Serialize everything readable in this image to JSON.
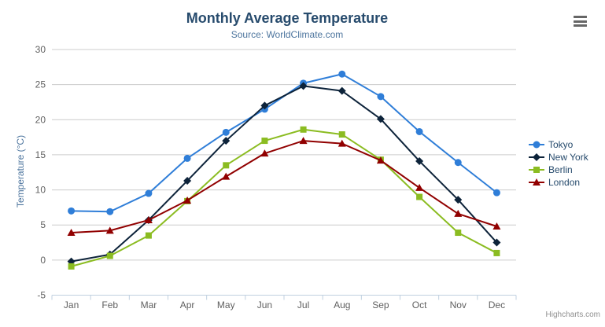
{
  "chart_data": {
    "type": "line",
    "title": "Monthly Average Temperature",
    "subtitle": "Source: WorldClimate.com",
    "xlabel": "",
    "ylabel": "Temperature (°C)",
    "categories": [
      "Jan",
      "Feb",
      "Mar",
      "Apr",
      "May",
      "Jun",
      "Jul",
      "Aug",
      "Sep",
      "Oct",
      "Nov",
      "Dec"
    ],
    "series": [
      {
        "name": "Tokyo",
        "color": "#2f7ed8",
        "marker": "circle",
        "values": [
          7.0,
          6.9,
          9.5,
          14.5,
          18.2,
          21.5,
          25.2,
          26.5,
          23.3,
          18.3,
          13.9,
          9.6
        ]
      },
      {
        "name": "New York",
        "color": "#0d233a",
        "marker": "diamond",
        "values": [
          -0.2,
          0.8,
          5.7,
          11.3,
          17.0,
          22.0,
          24.8,
          24.1,
          20.1,
          14.1,
          8.6,
          2.5
        ]
      },
      {
        "name": "Berlin",
        "color": "#8bbc21",
        "marker": "square",
        "values": [
          -0.9,
          0.6,
          3.5,
          8.4,
          13.5,
          17.0,
          18.6,
          17.9,
          14.3,
          9.0,
          3.9,
          1.0
        ]
      },
      {
        "name": "London",
        "color": "#910000",
        "marker": "triangle",
        "values": [
          3.9,
          4.2,
          5.7,
          8.5,
          11.9,
          15.2,
          17.0,
          16.6,
          14.2,
          10.3,
          6.6,
          4.8
        ]
      }
    ],
    "ylim": [
      -5,
      30
    ],
    "ytick_interval": 5,
    "yticks": [
      -5,
      0,
      5,
      10,
      15,
      20,
      25,
      30
    ],
    "grid": true,
    "legend_position": "right"
  },
  "credits": {
    "label": "Highcharts.com"
  },
  "menu": {
    "icon": "hamburger-menu-icon"
  },
  "colors": {
    "title": "#274b6d",
    "subtitle": "#4d759e",
    "axis_title": "#4d759e",
    "axis_labels": "#606060",
    "grid_line": "#cccccc",
    "axis_line": "#c0d0e0",
    "legend_text": "#274b6d",
    "credits_text": "#909090",
    "menu_icon": "#666666",
    "background": "#ffffff"
  }
}
